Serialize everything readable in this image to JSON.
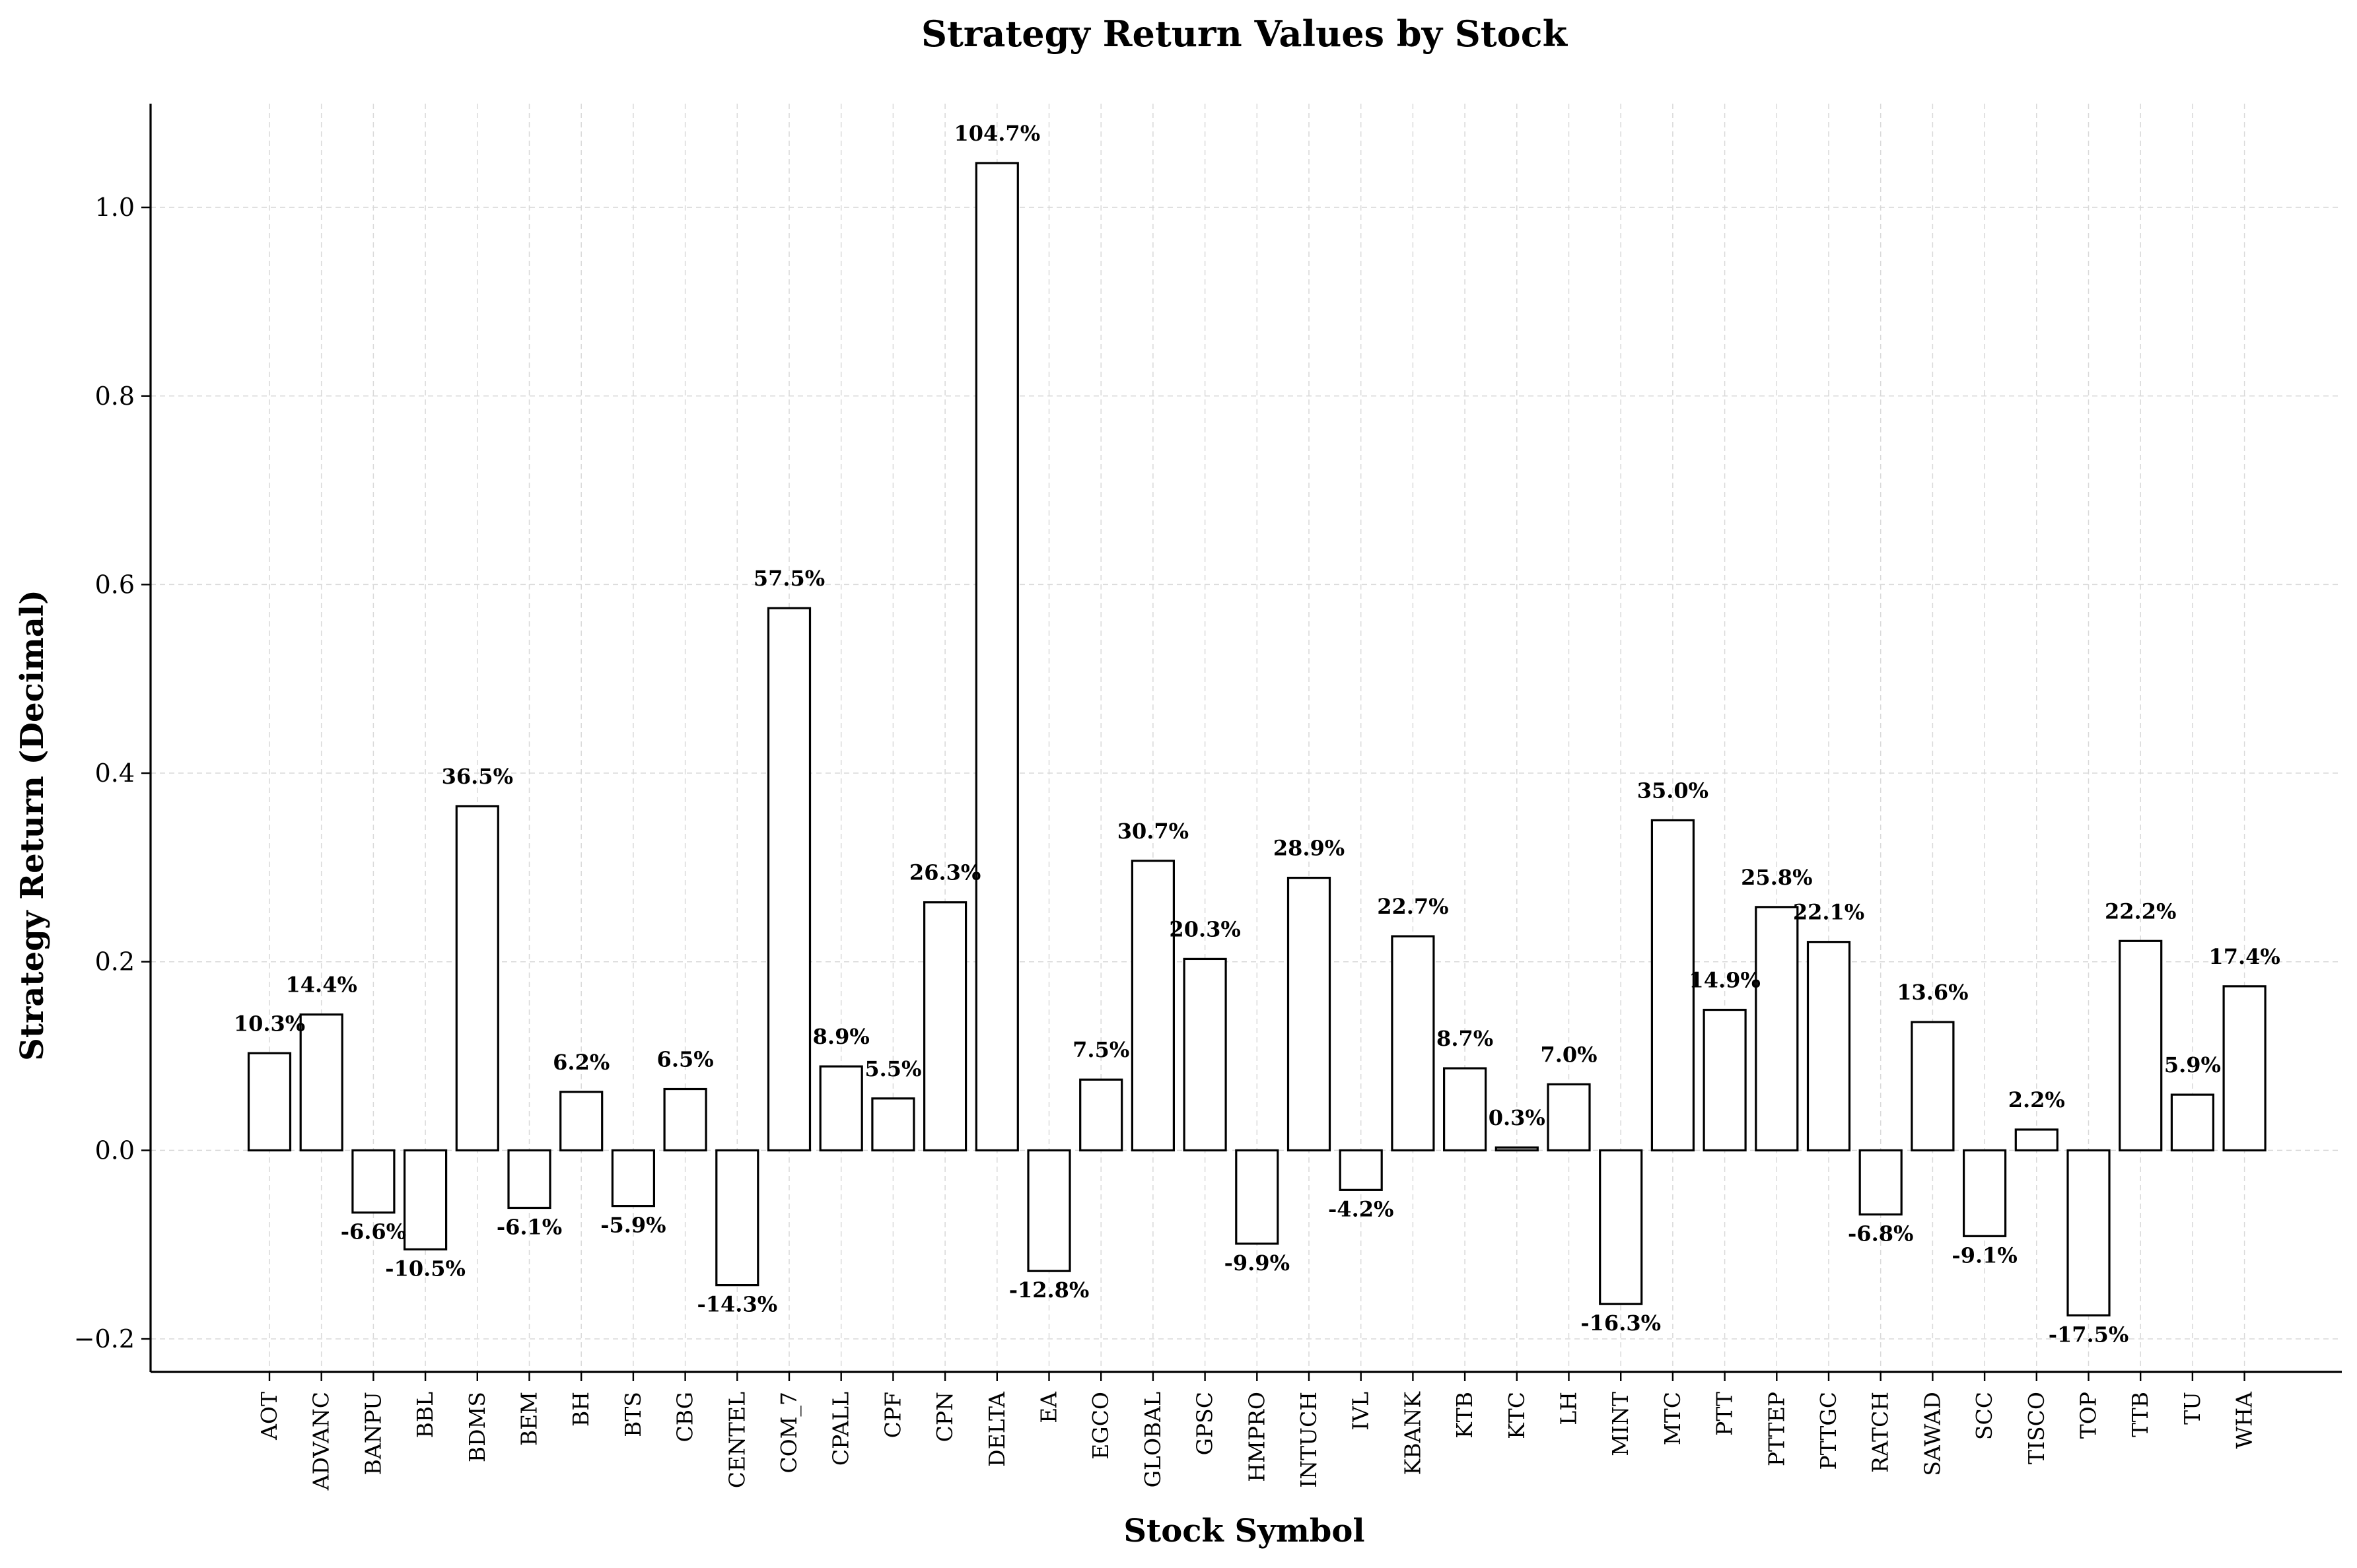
{
  "chart_data": {
    "type": "bar",
    "title": "Strategy Return Values by Stock",
    "xlabel": "Stock Symbol",
    "ylabel": "Strategy Return (Decimal)",
    "ylim": [
      -0.235,
      1.11
    ],
    "yticks": [
      -0.2,
      0.0,
      0.2,
      0.4,
      0.6,
      0.8,
      1.0
    ],
    "ytick_labels": [
      "−0.2",
      "0.0",
      "0.2",
      "0.4",
      "0.6",
      "0.8",
      "1.0"
    ],
    "grid": true,
    "categories": [
      "AOT",
      "ADVANC",
      "BANPU",
      "BBL",
      "BDMS",
      "BEM",
      "BH",
      "BTS",
      "CBG",
      "CENTEL",
      "COM_7",
      "CPALL",
      "CPF",
      "CPN",
      "DELTA",
      "EA",
      "EGCO",
      "GLOBAL",
      "GPSC",
      "HMPRO",
      "INTUCH",
      "IVL",
      "KBANK",
      "KTB",
      "KTC",
      "LH",
      "MINT",
      "MTC",
      "PTT",
      "PTTEP",
      "PTTGC",
      "RATCH",
      "SAWAD",
      "SCC",
      "TISCO",
      "TOP",
      "TTB",
      "TU",
      "WHA"
    ],
    "values": [
      0.103,
      0.144,
      -0.066,
      -0.105,
      0.365,
      -0.061,
      0.062,
      -0.059,
      0.065,
      -0.143,
      0.575,
      0.089,
      0.055,
      0.263,
      1.047,
      -0.128,
      0.075,
      0.307,
      0.203,
      -0.099,
      0.289,
      -0.042,
      0.227,
      0.087,
      0.003,
      0.07,
      -0.163,
      0.35,
      0.149,
      0.258,
      0.221,
      -0.068,
      0.136,
      -0.091,
      0.022,
      -0.175,
      0.222,
      0.059,
      0.174
    ],
    "data_labels": [
      "10.3%",
      "14.4%",
      "-6.6%",
      "-10.5%",
      "36.5%",
      "-6.1%",
      "6.2%",
      "-5.9%",
      "6.5%",
      "-14.3%",
      "57.5%",
      "8.9%",
      "5.5%",
      "26.3%",
      "104.7%",
      "-12.8%",
      "7.5%",
      "30.7%",
      "20.3%",
      "-9.9%",
      "28.9%",
      "-4.2%",
      "22.7%",
      "8.7%",
      "0.3%",
      "7.0%",
      "-16.3%",
      "35.0%",
      "14.9%",
      "25.8%",
      "22.1%",
      "-6.8%",
      "13.6%",
      "-9.1%",
      "2.2%",
      "-17.5%",
      "22.2%",
      "5.9%",
      "17.4%"
    ],
    "colors": {
      "bar_fill": "#ffffff",
      "bar_edge": "#000000",
      "grid": "#d9d9d9"
    }
  }
}
